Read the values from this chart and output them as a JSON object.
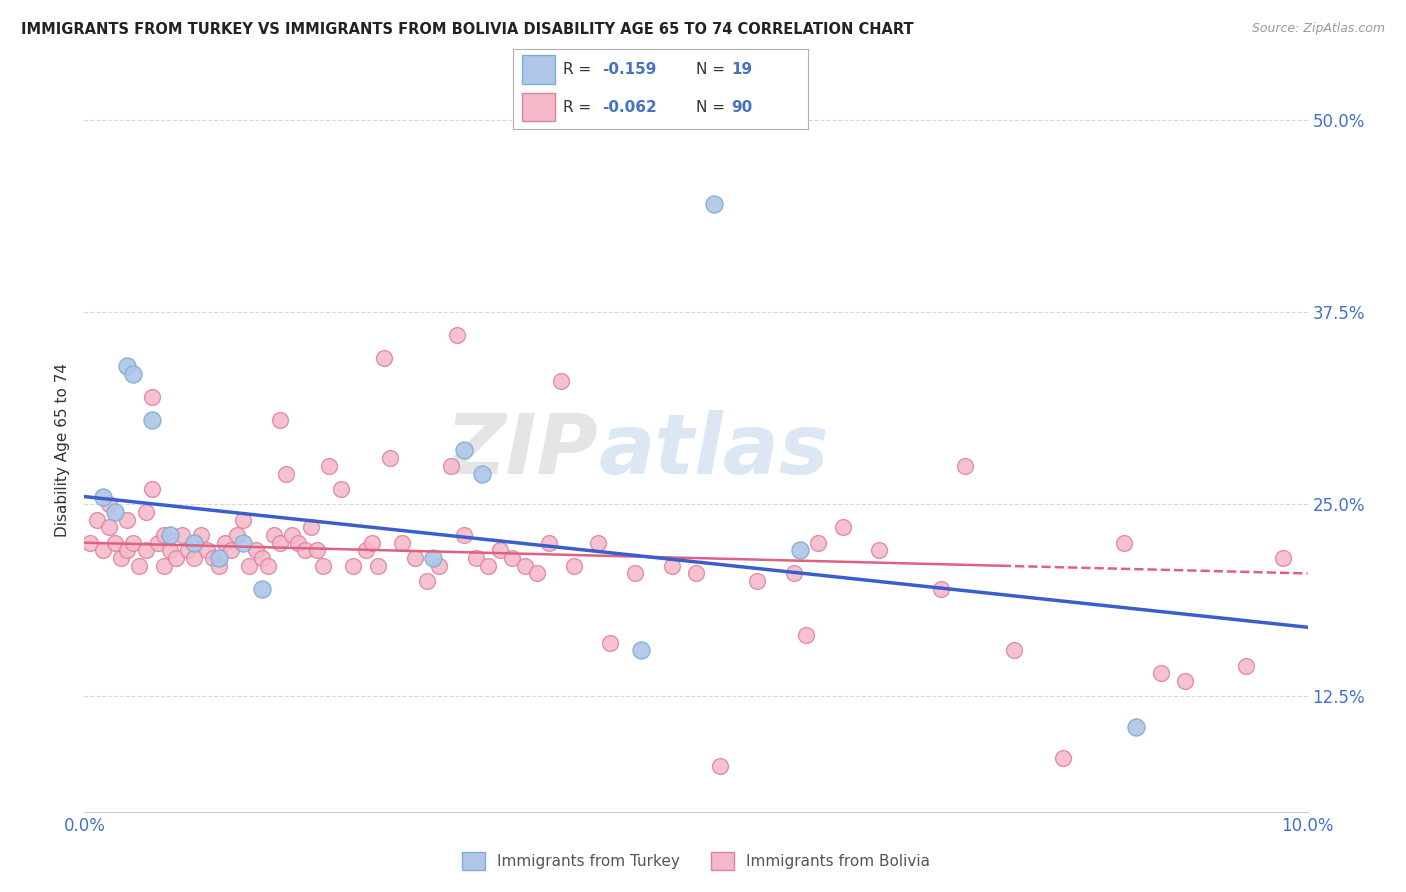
{
  "title": "IMMIGRANTS FROM TURKEY VS IMMIGRANTS FROM BOLIVIA DISABILITY AGE 65 TO 74 CORRELATION CHART",
  "source": "Source: ZipAtlas.com",
  "ylabel": "Disability Age 65 to 74",
  "xlim": [
    0.0,
    10.0
  ],
  "ylim": [
    5.0,
    52.0
  ],
  "yticks": [
    12.5,
    25.0,
    37.5,
    50.0
  ],
  "yticklabels": [
    "12.5%",
    "25.0%",
    "37.5%",
    "50.0%"
  ],
  "background_color": "#ffffff",
  "grid_color": "#d8d8d8",
  "turkey_color": "#aec6e8",
  "turkey_edge": "#7bafd4",
  "bolivia_color": "#f5b8c8",
  "bolivia_edge": "#e080a0",
  "turkey_line_color": "#3a5fcd",
  "bolivia_line_color": "#e06080",
  "watermark_text": "ZIPatlas",
  "legend_R_color": "#4472c4",
  "turkey_x": [
    0.15,
    0.25,
    0.35,
    0.4,
    0.55,
    0.7,
    0.9,
    1.1,
    1.3,
    1.45,
    2.85,
    3.1,
    3.25,
    4.55,
    5.15,
    5.85,
    8.6
  ],
  "turkey_y": [
    25.5,
    24.5,
    34.0,
    33.5,
    30.5,
    23.0,
    22.5,
    21.5,
    22.5,
    19.5,
    21.5,
    28.5,
    27.0,
    15.5,
    44.5,
    22.0,
    10.5
  ],
  "bolivia_x": [
    0.05,
    0.1,
    0.15,
    0.2,
    0.2,
    0.25,
    0.3,
    0.35,
    0.35,
    0.4,
    0.45,
    0.5,
    0.5,
    0.55,
    0.6,
    0.65,
    0.65,
    0.7,
    0.75,
    0.8,
    0.85,
    0.9,
    0.95,
    1.0,
    1.05,
    1.1,
    1.15,
    1.2,
    1.25,
    1.3,
    1.35,
    1.4,
    1.45,
    1.5,
    1.55,
    1.6,
    1.65,
    1.7,
    1.75,
    1.8,
    1.85,
    1.9,
    1.95,
    2.0,
    2.1,
    2.2,
    2.3,
    2.35,
    2.4,
    2.5,
    2.6,
    2.7,
    2.8,
    2.9,
    3.0,
    3.1,
    3.2,
    3.3,
    3.4,
    3.5,
    3.6,
    3.7,
    3.8,
    4.0,
    4.2,
    4.5,
    4.8,
    5.0,
    5.5,
    5.8,
    6.0,
    6.2,
    6.5,
    7.0,
    7.2,
    8.5,
    8.8,
    9.0,
    9.5,
    3.05,
    1.6,
    2.45,
    5.2,
    3.9,
    4.3,
    5.9,
    7.6,
    8.0,
    9.8,
    0.55
  ],
  "bolivia_y": [
    22.5,
    24.0,
    22.0,
    25.0,
    23.5,
    22.5,
    21.5,
    24.0,
    22.0,
    22.5,
    21.0,
    24.5,
    22.0,
    26.0,
    22.5,
    23.0,
    21.0,
    22.0,
    21.5,
    23.0,
    22.0,
    21.5,
    23.0,
    22.0,
    21.5,
    21.0,
    22.5,
    22.0,
    23.0,
    24.0,
    21.0,
    22.0,
    21.5,
    21.0,
    23.0,
    22.5,
    27.0,
    23.0,
    22.5,
    22.0,
    23.5,
    22.0,
    21.0,
    27.5,
    26.0,
    21.0,
    22.0,
    22.5,
    21.0,
    28.0,
    22.5,
    21.5,
    20.0,
    21.0,
    27.5,
    23.0,
    21.5,
    21.0,
    22.0,
    21.5,
    21.0,
    20.5,
    22.5,
    21.0,
    22.5,
    20.5,
    21.0,
    20.5,
    20.0,
    20.5,
    22.5,
    23.5,
    22.0,
    19.5,
    27.5,
    22.5,
    14.0,
    13.5,
    14.5,
    36.0,
    30.5,
    34.5,
    8.0,
    33.0,
    16.0,
    16.5,
    15.5,
    8.5,
    21.5,
    32.0
  ],
  "turkey_line_x0": 0.0,
  "turkey_line_y0": 25.5,
  "turkey_line_x1": 10.0,
  "turkey_line_y1": 17.0,
  "bolivia_line_x0": 0.0,
  "bolivia_line_y0": 22.5,
  "bolivia_line_x1": 10.0,
  "bolivia_line_y1": 20.5,
  "bolivia_solid_x1": 7.5,
  "bolivia_solid_y1": 21.0
}
